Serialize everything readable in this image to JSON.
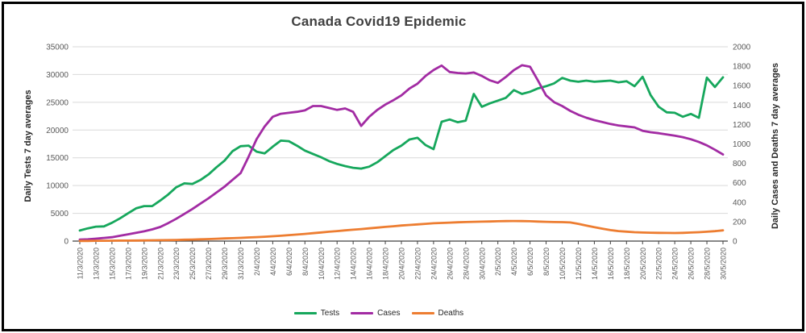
{
  "title": "Canada Covid19 Epidemic",
  "colors": {
    "tests": "#16A75C",
    "cases": "#A22BA3",
    "deaths": "#ED7D31",
    "grid": "#D9D9D9",
    "axis_line": "#404040",
    "tick_text": "#595959",
    "title_text": "#404040",
    "axis_title_text": "#262626",
    "background": "#FFFFFF",
    "border": "#000000"
  },
  "left_axis_title": "Daily Tests 7 day averages",
  "right_axis_title": "Daily Cases and Deaths 7 day averages",
  "chart_data": {
    "type": "line",
    "title": "Canada Covid19 Epidemic",
    "xlabel": "",
    "ylabel_left": "Daily Tests 7 day averages",
    "ylabel_right": "Daily Cases and Deaths 7 day averages",
    "grid": true,
    "legend_position": "bottom",
    "left_axis": {
      "min": 0,
      "max": 35000,
      "step": 5000,
      "tick_labels": [
        "0",
        "5000",
        "10000",
        "15000",
        "20000",
        "25000",
        "30000",
        "35000"
      ]
    },
    "right_axis": {
      "min": 0,
      "max": 2000,
      "step": 200,
      "tick_labels": [
        "0",
        "200",
        "400",
        "600",
        "800",
        "1000",
        "1200",
        "1400",
        "1600",
        "1800",
        "2000"
      ]
    },
    "x_tick_labels": [
      "11/3/2020",
      "13/3/2020",
      "15/3/2020",
      "17/3/2020",
      "19/3/2020",
      "21/3/2020",
      "23/3/2020",
      "25/3/2020",
      "27/3/2020",
      "29/3/2020",
      "31/3/2020",
      "2/4/2020",
      "4/4/2020",
      "6/4/2020",
      "8/4/2020",
      "10/4/2020",
      "12/4/2020",
      "14/4/2020",
      "16/4/2020",
      "18/4/2020",
      "20/4/2020",
      "22/4/2020",
      "24/4/2020",
      "26/4/2020",
      "28/4/2020",
      "30/4/2020",
      "2/5/2020",
      "4/5/2020",
      "6/5/2020",
      "8/5/2020",
      "10/5/2020",
      "12/5/2020",
      "14/5/2020",
      "16/5/2020",
      "18/5/2020",
      "20/5/2020",
      "22/5/2020",
      "24/5/2020",
      "26/5/2020",
      "28/5/2020",
      "30/5/2020"
    ],
    "x_days_per_point": 1,
    "x_points_per_tick": 2,
    "series": [
      {
        "name": "Tests",
        "axis": "left",
        "color_key": "tests",
        "values": [
          1900,
          2300,
          2600,
          2650,
          3300,
          4100,
          5000,
          5900,
          6300,
          6300,
          7300,
          8400,
          9700,
          10400,
          10300,
          11000,
          12000,
          13300,
          14500,
          16200,
          17100,
          17200,
          16100,
          15800,
          17000,
          18100,
          18000,
          17200,
          16300,
          15700,
          15100,
          14400,
          13900,
          13500,
          13200,
          13050,
          13400,
          14200,
          15300,
          16400,
          17200,
          18300,
          18600,
          17300,
          16550,
          21500,
          21900,
          21400,
          21700,
          26500,
          24200,
          24800,
          25300,
          25800,
          27200,
          26500,
          26900,
          27500,
          27900,
          28400,
          29400,
          28900,
          28700,
          28900,
          28700,
          28800,
          28900,
          28600,
          28800,
          27900,
          29600,
          26300,
          24200,
          23200,
          23100,
          22400,
          22900,
          22200,
          29440,
          27750,
          29500
        ]
      },
      {
        "name": "Cases",
        "axis": "right",
        "color_key": "cases",
        "values": [
          15,
          18,
          25,
          32,
          40,
          55,
          70,
          85,
          100,
          120,
          145,
          185,
          230,
          280,
          330,
          385,
          440,
          500,
          560,
          630,
          700,
          870,
          1050,
          1180,
          1280,
          1310,
          1320,
          1330,
          1345,
          1390,
          1390,
          1370,
          1350,
          1365,
          1330,
          1185,
          1280,
          1350,
          1405,
          1450,
          1500,
          1570,
          1620,
          1700,
          1760,
          1807,
          1740,
          1730,
          1725,
          1735,
          1700,
          1655,
          1628,
          1690,
          1760,
          1810,
          1795,
          1650,
          1500,
          1430,
          1390,
          1340,
          1300,
          1270,
          1245,
          1225,
          1205,
          1190,
          1180,
          1170,
          1135,
          1120,
          1110,
          1098,
          1085,
          1070,
          1048,
          1020,
          985,
          940,
          891
        ]
      },
      {
        "name": "Deaths",
        "axis": "right",
        "color_key": "deaths",
        "values": [
          2,
          2,
          3,
          3,
          4,
          5,
          5,
          6,
          7,
          8,
          9,
          10,
          12,
          14,
          16,
          18,
          21,
          24,
          27,
          30,
          33,
          37,
          41,
          45,
          50,
          55,
          61,
          67,
          74,
          81,
          89,
          96,
          103,
          110,
          117,
          124,
          131,
          139,
          146,
          153,
          160,
          166,
          172,
          178,
          183,
          187,
          190,
          193,
          196,
          198,
          200,
          202,
          204,
          206,
          207,
          206,
          204,
          201,
          198,
          196,
          195,
          192,
          178,
          160,
          143,
          128,
          113,
          103,
          97,
          91,
          88,
          86,
          85,
          84,
          83,
          85,
          88,
          91,
          96,
          102,
          110
        ]
      }
    ]
  }
}
